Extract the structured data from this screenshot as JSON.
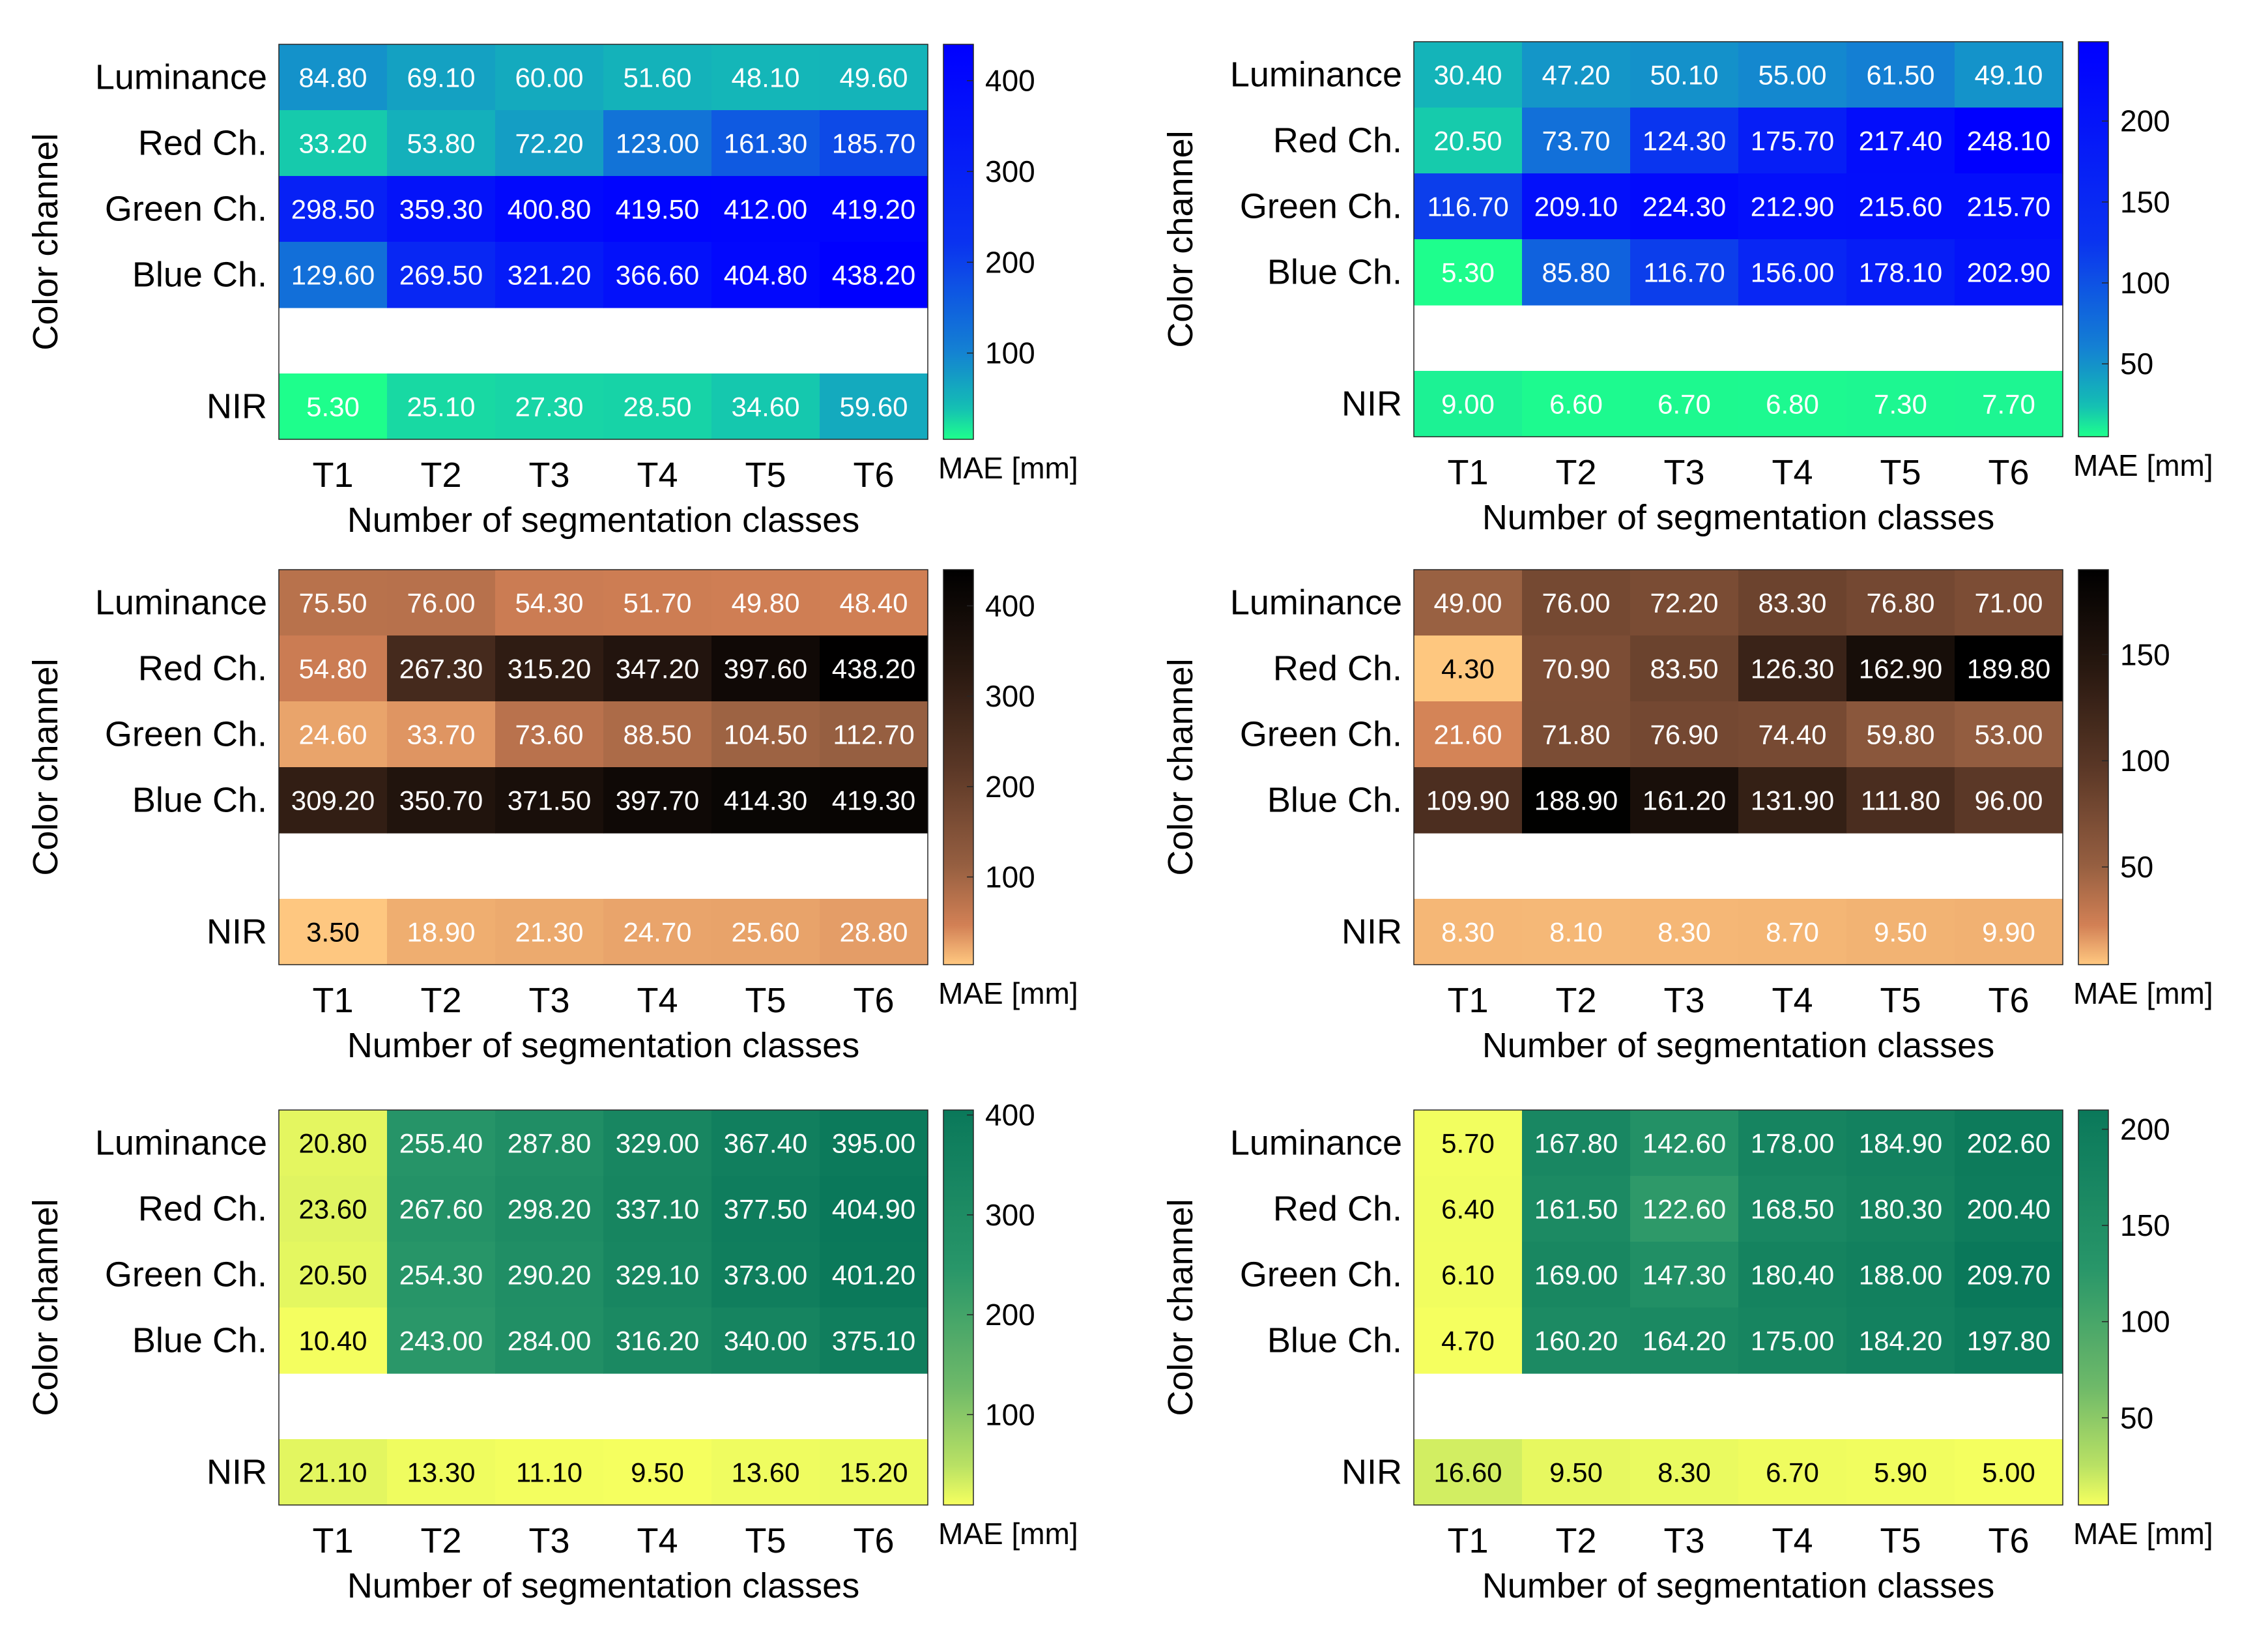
{
  "chart_data": [
    {
      "type": "heatmap",
      "colormap": "blue",
      "ylabel": "Color channel",
      "xlabel": "Number of segmentation classes",
      "colorbar_label": "MAE [mm]",
      "clim": [
        5,
        440
      ],
      "colorbar_ticks": [
        100,
        200,
        300,
        400
      ],
      "columns": [
        "T1",
        "T2",
        "T3",
        "T4",
        "T5",
        "T6"
      ],
      "rows": [
        {
          "label": "Luminance",
          "values": [
            "84.80",
            "69.10",
            "60.00",
            "51.60",
            "48.10",
            "49.60"
          ]
        },
        {
          "label": "Red Ch.",
          "values": [
            "33.20",
            "53.80",
            "72.20",
            "123.00",
            "161.30",
            "185.70"
          ]
        },
        {
          "label": "Green Ch.",
          "values": [
            "298.50",
            "359.30",
            "400.80",
            "419.50",
            "412.00",
            "419.20"
          ]
        },
        {
          "label": "Blue Ch.",
          "values": [
            "129.60",
            "269.50",
            "321.20",
            "366.60",
            "404.80",
            "438.20"
          ]
        },
        {
          "label": "NIR",
          "values": [
            "5.30",
            "25.10",
            "27.30",
            "28.50",
            "34.60",
            "59.60"
          ]
        }
      ]
    },
    {
      "type": "heatmap",
      "colormap": "blue",
      "ylabel": "Color channel",
      "xlabel": "Number of segmentation classes",
      "colorbar_label": "MAE [mm]",
      "clim": [
        5,
        249
      ],
      "colorbar_ticks": [
        50,
        100,
        150,
        200
      ],
      "columns": [
        "T1",
        "T2",
        "T3",
        "T4",
        "T5",
        "T6"
      ],
      "rows": [
        {
          "label": "Luminance",
          "values": [
            "30.40",
            "47.20",
            "50.10",
            "55.00",
            "61.50",
            "49.10"
          ]
        },
        {
          "label": "Red Ch.",
          "values": [
            "20.50",
            "73.70",
            "124.30",
            "175.70",
            "217.40",
            "248.10"
          ]
        },
        {
          "label": "Green Ch.",
          "values": [
            "116.70",
            "209.10",
            "224.30",
            "212.90",
            "215.60",
            "215.70"
          ]
        },
        {
          "label": "Blue Ch.",
          "values": [
            "5.30",
            "85.80",
            "116.70",
            "156.00",
            "178.10",
            "202.90"
          ]
        },
        {
          "label": "NIR",
          "values": [
            "9.00",
            "6.60",
            "6.70",
            "6.80",
            "7.30",
            "7.70"
          ]
        }
      ]
    },
    {
      "type": "heatmap",
      "colormap": "copper",
      "ylabel": "Color channel",
      "xlabel": "Number of segmentation classes",
      "colorbar_label": "MAE [mm]",
      "clim": [
        3,
        440
      ],
      "colorbar_ticks": [
        100,
        200,
        300,
        400
      ],
      "columns": [
        "T1",
        "T2",
        "T3",
        "T4",
        "T5",
        "T6"
      ],
      "rows": [
        {
          "label": "Luminance",
          "values": [
            "75.50",
            "76.00",
            "54.30",
            "51.70",
            "49.80",
            "48.40"
          ]
        },
        {
          "label": "Red Ch.",
          "values": [
            "54.80",
            "267.30",
            "315.20",
            "347.20",
            "397.60",
            "438.20"
          ]
        },
        {
          "label": "Green Ch.",
          "values": [
            "24.60",
            "33.70",
            "73.60",
            "88.50",
            "104.50",
            "112.70"
          ]
        },
        {
          "label": "Blue Ch.",
          "values": [
            "309.20",
            "350.70",
            "371.50",
            "397.70",
            "414.30",
            "419.30"
          ]
        },
        {
          "label": "NIR",
          "values": [
            "3.50",
            "18.90",
            "21.30",
            "24.70",
            "25.60",
            "28.80"
          ]
        }
      ]
    },
    {
      "type": "heatmap",
      "colormap": "copper",
      "ylabel": "Color channel",
      "xlabel": "Number of segmentation classes",
      "colorbar_label": "MAE [mm]",
      "clim": [
        4,
        190
      ],
      "colorbar_ticks": [
        50,
        100,
        150
      ],
      "columns": [
        "T1",
        "T2",
        "T3",
        "T4",
        "T5",
        "T6"
      ],
      "rows": [
        {
          "label": "Luminance",
          "values": [
            "49.00",
            "76.00",
            "72.20",
            "83.30",
            "76.80",
            "71.00"
          ]
        },
        {
          "label": "Red Ch.",
          "values": [
            "4.30",
            "70.90",
            "83.50",
            "126.30",
            "162.90",
            "189.80"
          ]
        },
        {
          "label": "Green Ch.",
          "values": [
            "21.60",
            "71.80",
            "76.90",
            "74.40",
            "59.80",
            "53.00"
          ]
        },
        {
          "label": "Blue Ch.",
          "values": [
            "109.90",
            "188.90",
            "161.20",
            "131.90",
            "111.80",
            "96.00"
          ]
        },
        {
          "label": "NIR",
          "values": [
            "8.30",
            "8.10",
            "8.30",
            "8.70",
            "9.50",
            "9.90"
          ]
        }
      ]
    },
    {
      "type": "heatmap",
      "colormap": "green",
      "ylabel": "Color channel",
      "xlabel": "Number of segmentation classes",
      "colorbar_label": "MAE [mm]",
      "clim": [
        9.5,
        405
      ],
      "colorbar_ticks": [
        100,
        200,
        300,
        400
      ],
      "columns": [
        "T1",
        "T2",
        "T3",
        "T4",
        "T5",
        "T6"
      ],
      "rows": [
        {
          "label": "Luminance",
          "values": [
            "20.80",
            "255.40",
            "287.80",
            "329.00",
            "367.40",
            "395.00"
          ]
        },
        {
          "label": "Red Ch.",
          "values": [
            "23.60",
            "267.60",
            "298.20",
            "337.10",
            "377.50",
            "404.90"
          ]
        },
        {
          "label": "Green Ch.",
          "values": [
            "20.50",
            "254.30",
            "290.20",
            "329.10",
            "373.00",
            "401.20"
          ]
        },
        {
          "label": "Blue Ch.",
          "values": [
            "10.40",
            "243.00",
            "284.00",
            "316.20",
            "340.00",
            "375.10"
          ]
        },
        {
          "label": "NIR",
          "values": [
            "21.10",
            "13.30",
            "11.10",
            "9.50",
            "13.60",
            "15.20"
          ]
        }
      ]
    },
    {
      "type": "heatmap",
      "colormap": "green",
      "ylabel": "Color channel",
      "xlabel": "Number of segmentation classes",
      "colorbar_label": "MAE [mm]",
      "clim": [
        4.7,
        210
      ],
      "colorbar_ticks": [
        50,
        100,
        150,
        200
      ],
      "columns": [
        "T1",
        "T2",
        "T3",
        "T4",
        "T5",
        "T6"
      ],
      "rows": [
        {
          "label": "Luminance",
          "values": [
            "5.70",
            "167.80",
            "142.60",
            "178.00",
            "184.90",
            "202.60"
          ]
        },
        {
          "label": "Red Ch.",
          "values": [
            "6.40",
            "161.50",
            "122.60",
            "168.50",
            "180.30",
            "200.40"
          ]
        },
        {
          "label": "Green Ch.",
          "values": [
            "6.10",
            "169.00",
            "147.30",
            "180.40",
            "188.00",
            "209.70"
          ]
        },
        {
          "label": "Blue Ch.",
          "values": [
            "4.70",
            "160.20",
            "164.20",
            "175.00",
            "184.20",
            "197.80"
          ]
        },
        {
          "label": "NIR",
          "values": [
            "16.60",
            "9.50",
            "8.30",
            "6.70",
            "5.90",
            "5.00"
          ]
        }
      ]
    }
  ]
}
